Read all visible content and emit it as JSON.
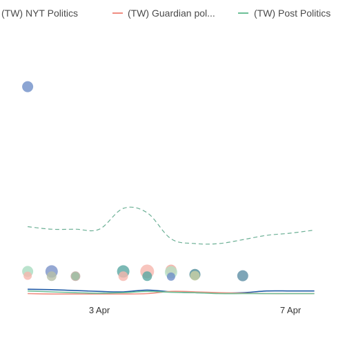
{
  "chart_data": {
    "type": "line",
    "legend_placement": "top",
    "grid": false,
    "x_ticks": [
      "3 Apr",
      "7 Apr"
    ],
    "series": [
      {
        "name": "(TW) NYT Politics",
        "color": "#1f5aa6",
        "x": [
          "1 Apr 12:00",
          "2 Apr",
          "2 Apr 12:00",
          "3 Apr",
          "3 Apr 12:00",
          "4 Apr",
          "4 Apr 12:00",
          "5 Apr",
          "5 Apr 12:00",
          "6 Apr",
          "6 Apr 12:00",
          "7 Apr",
          "7 Apr 12:00"
        ],
        "y": [
          14,
          13,
          11,
          9,
          8,
          12,
          8,
          6,
          5,
          6,
          10,
          10,
          10
        ]
      },
      {
        "name": "(TW) Guardian pol...",
        "color": "#f08c80",
        "x": [
          "1 Apr 12:00",
          "2 Apr",
          "2 Apr 12:00",
          "3 Apr",
          "3 Apr 12:00",
          "4 Apr",
          "4 Apr 12:00",
          "5 Apr",
          "5 Apr 12:00",
          "6 Apr",
          "6 Apr 12:00",
          "7 Apr",
          "7 Apr 12:00"
        ],
        "y": [
          4,
          3,
          3,
          3,
          3,
          4,
          9,
          8,
          6,
          5,
          4,
          4,
          4
        ]
      },
      {
        "name": "(TW) Post Politics",
        "color": "#6cbf96",
        "x": [
          "1 Apr 12:00",
          "2 Apr",
          "2 Apr 12:00",
          "3 Apr",
          "3 Apr 12:00",
          "4 Apr",
          "4 Apr 12:00",
          "5 Apr",
          "5 Apr 12:00",
          "6 Apr",
          "6 Apr 12:00",
          "7 Apr",
          "7 Apr 12:00"
        ],
        "y": [
          10,
          8,
          6,
          5,
          6,
          9,
          7,
          6,
          4,
          4,
          4,
          4,
          4
        ]
      }
    ],
    "dashed_trend": {
      "color": "#6aaf94",
      "x": [
        "1 Apr 12:00",
        "2 Apr",
        "2 Apr 12:00",
        "3 Apr",
        "3 Apr 12:00",
        "4 Apr",
        "4 Apr 12:00",
        "5 Apr",
        "5 Apr 12:00",
        "6 Apr",
        "6 Apr 12:00",
        "7 Apr",
        "7 Apr 12:00"
      ],
      "y": [
        158,
        152,
        152,
        152,
        200,
        190,
        130,
        119,
        119,
        128,
        138,
        143,
        150
      ]
    },
    "scatter": [
      {
        "x": "1 Apr 12:00",
        "y": 480,
        "size": 8,
        "color": "#6f8fc8"
      },
      {
        "x": "1 Apr 12:00",
        "y": 55,
        "size": 8,
        "color": "#a9dcc0"
      },
      {
        "x": "1 Apr 12:00",
        "y": 45,
        "size": 6,
        "color": "#f6b6ae"
      },
      {
        "x": "2 Apr",
        "y": 55,
        "size": 9,
        "color": "#7a92c8"
      },
      {
        "x": "2 Apr",
        "y": 44,
        "size": 7,
        "color": "#b7bfa8"
      },
      {
        "x": "2 Apr 12:00",
        "y": 44,
        "size": 7,
        "color": "#c2a6a0"
      },
      {
        "x": "2 Apr 12:00",
        "y": 44,
        "size": 6,
        "color": "#9dbfa2"
      },
      {
        "x": "3 Apr 12:00",
        "y": 55,
        "size": 9,
        "color": "#5aa7a3"
      },
      {
        "x": "3 Apr 12:00",
        "y": 44,
        "size": 7,
        "color": "#f6b6ae"
      },
      {
        "x": "4 Apr",
        "y": 55,
        "size": 10,
        "color": "#f6b6ae"
      },
      {
        "x": "4 Apr",
        "y": 44,
        "size": 7,
        "color": "#5aa7a3"
      },
      {
        "x": "4 Apr 12:00",
        "y": 58,
        "size": 8,
        "color": "#f2a89c"
      },
      {
        "x": "4 Apr 12:00",
        "y": 53,
        "size": 9,
        "color": "#b5e1c6"
      },
      {
        "x": "4 Apr 12:00",
        "y": 43,
        "size": 6,
        "color": "#6f8fc8"
      },
      {
        "x": "5 Apr",
        "y": 48,
        "size": 8,
        "color": "#4f8c9a"
      },
      {
        "x": "5 Apr",
        "y": 45,
        "size": 7,
        "color": "#c9cfa4"
      },
      {
        "x": "6 Apr",
        "y": 45,
        "size": 8,
        "color": "#5e8fa5"
      }
    ]
  }
}
